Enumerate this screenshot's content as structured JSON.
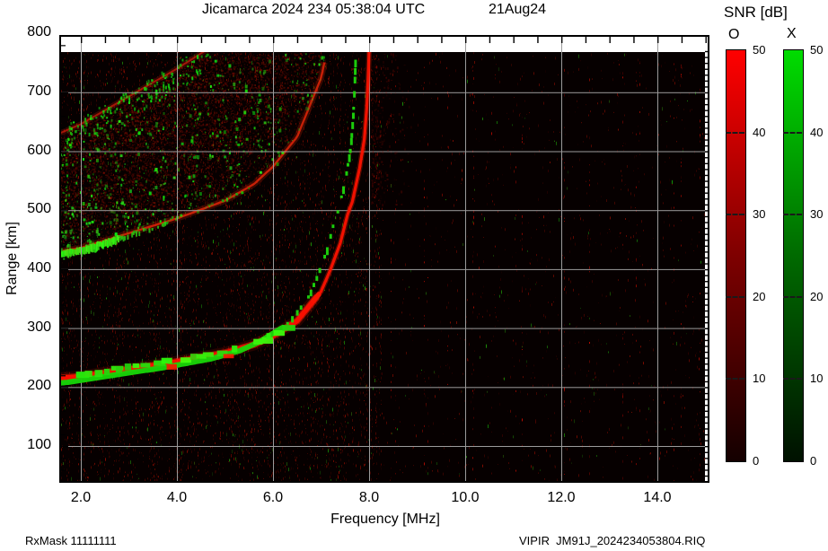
{
  "header": {
    "title": "Jicamarca 2024 234 05:38:04 UTC",
    "date": "21Aug24"
  },
  "axes": {
    "x_label": "Frequency [MHz]",
    "y_label": "Range [km]",
    "x_ticks": [
      {
        "f": 2,
        "label": "2.0"
      },
      {
        "f": 4,
        "label": "4.0"
      },
      {
        "f": 6,
        "label": "6.0"
      },
      {
        "f": 8,
        "label": "8.0"
      },
      {
        "f": 10,
        "label": "10.0"
      },
      {
        "f": 12,
        "label": "12.0"
      },
      {
        "f": 14,
        "label": "14.0"
      }
    ],
    "y_ticks": [
      {
        "r": 800,
        "label": "800"
      },
      {
        "r": 700,
        "label": "700"
      },
      {
        "r": 600,
        "label": "600"
      },
      {
        "r": 500,
        "label": "500"
      },
      {
        "r": 400,
        "label": "400"
      },
      {
        "r": 300,
        "label": "300"
      },
      {
        "r": 200,
        "label": "200"
      },
      {
        "r": 100,
        "label": "100"
      }
    ]
  },
  "legend": {
    "title": "SNR [dB]",
    "o_label": "O",
    "x_label": "X",
    "o_color": "#ff0000",
    "x_color": "#00dc00",
    "ticks": [
      {
        "v": 50,
        "label": "50"
      },
      {
        "v": 40,
        "label": "40"
      },
      {
        "v": 30,
        "label": "30"
      },
      {
        "v": 20,
        "label": "20"
      },
      {
        "v": 10,
        "label": "10"
      },
      {
        "v": 0,
        "label": "0"
      }
    ],
    "dash_ticks": [
      40,
      30,
      20,
      10
    ]
  },
  "footer": {
    "rx_mask": "RxMask 11111111",
    "file": "VIPIR  JM91J_2024234053804.RIQ"
  },
  "chart_data": {
    "type": "heatmap",
    "title": "Jicamarca 2024 234 05:38:04 UTC   21Aug24",
    "xlabel": "Frequency [MHz]",
    "ylabel": "Range [km]",
    "xlim": [
      1.55,
      15.1
    ],
    "ylim": [
      38,
      800
    ],
    "xticks": [
      2,
      4,
      6,
      8,
      10,
      12,
      14
    ],
    "yticks": [
      100,
      200,
      300,
      400,
      500,
      600,
      700,
      800
    ],
    "grid": true,
    "background_color": "#000000",
    "grid_color": "#9b9b9b",
    "max_sampled_range_km": 770,
    "colorbar": {
      "label": "SNR [dB]",
      "range": [
        0,
        50
      ],
      "tick_step": 10,
      "series": [
        {
          "name": "O",
          "color": "#ff0000"
        },
        {
          "name": "X",
          "color": "#00dc00"
        }
      ]
    },
    "o_trace_f_mhz_vs_virtual_height_km": [
      [
        1.55,
        215
      ],
      [
        2.0,
        218
      ],
      [
        2.8,
        228
      ],
      [
        4.0,
        243
      ],
      [
        5.0,
        258
      ],
      [
        5.6,
        272
      ],
      [
        6.0,
        287
      ],
      [
        6.5,
        312
      ],
      [
        7.0,
        362
      ],
      [
        7.2,
        400
      ],
      [
        7.4,
        444
      ],
      [
        7.55,
        492
      ],
      [
        7.65,
        514
      ],
      [
        7.8,
        570
      ],
      [
        7.9,
        620
      ],
      [
        7.95,
        672
      ],
      [
        7.98,
        722
      ],
      [
        8.0,
        770
      ]
    ],
    "o_critical_freq_mhz": 8.0,
    "x_critical_freq_mhz": 7.72,
    "x_trace_freq_offset_mhz": 0.28,
    "x_trace_height_offset_km": -10,
    "second_hop_echo": {
      "height_multiplier": 2,
      "spread_base_km": 200,
      "spread_growth_km_per_mhz": 22,
      "f_range_mhz": [
        1.55,
        7.6
      ]
    }
  }
}
